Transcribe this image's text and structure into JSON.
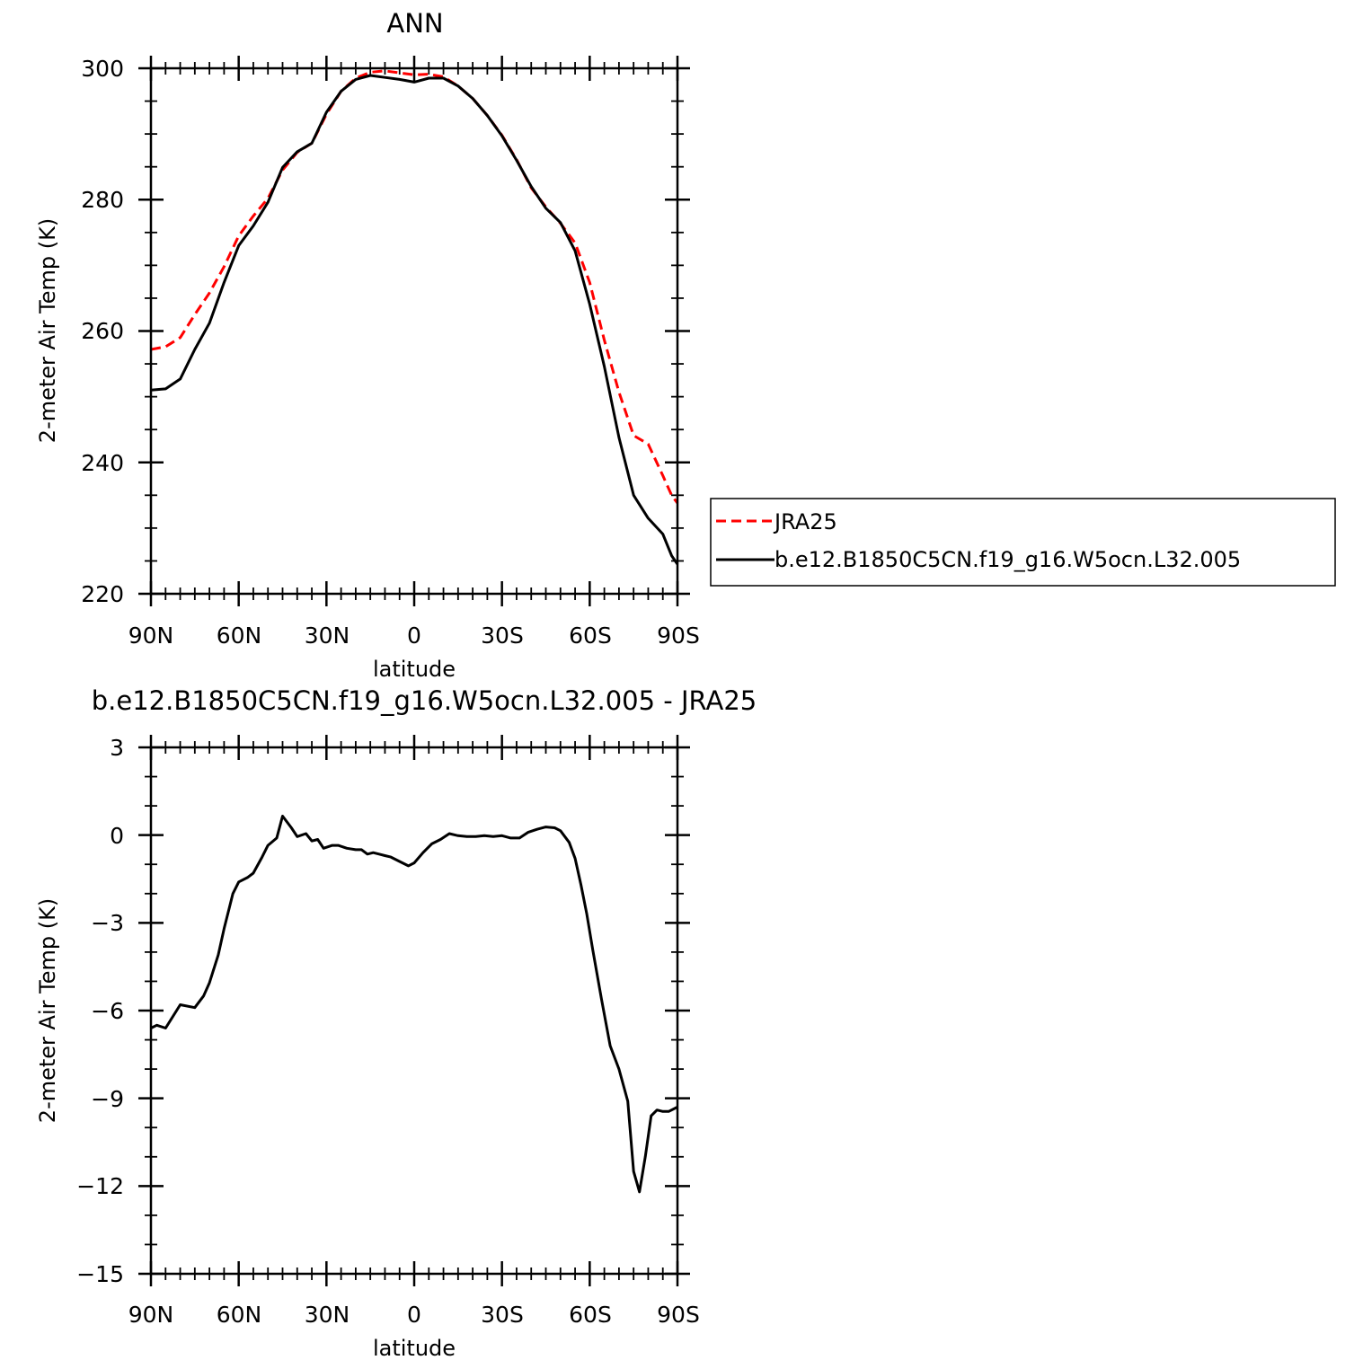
{
  "chart_data": [
    {
      "type": "line",
      "title": "ANN",
      "xlabel": "latitude",
      "ylabel": "2-meter Air Temp (K)",
      "x_unit": "degrees latitude (positive = N, negative = S)",
      "xlim": [
        90,
        -90
      ],
      "ylim": [
        220,
        300
      ],
      "xticks": [
        90,
        60,
        30,
        0,
        -30,
        -60,
        -90
      ],
      "xtick_labels": [
        "90N",
        "60N",
        "30N",
        "0",
        "30S",
        "60S",
        "90S"
      ],
      "yticks": [
        220,
        240,
        260,
        280,
        300
      ],
      "ytick_labels": [
        "220",
        "240",
        "260",
        "280",
        "300"
      ],
      "grid": false,
      "legend": {
        "placement": "right, outside plot"
      },
      "series": [
        {
          "name": "JRA25",
          "color": "#ff0000",
          "style": "dashed",
          "x": [
            90,
            85,
            80,
            75,
            70,
            65,
            60,
            55,
            50,
            45,
            40,
            35,
            30,
            25,
            20,
            15,
            10,
            5,
            0,
            -5,
            -10,
            -15,
            -20,
            -25,
            -30,
            -35,
            -40,
            -45,
            -50,
            -55,
            -60,
            -65,
            -70,
            -75,
            -80,
            -85,
            -88,
            -90
          ],
          "y": [
            257.2,
            257.6,
            259,
            262.5,
            265.8,
            269.8,
            274.5,
            277.5,
            280.2,
            284.5,
            287.2,
            288.6,
            293,
            296.5,
            298.5,
            299.4,
            299.6,
            299.3,
            299,
            299.1,
            298.7,
            297.3,
            295.4,
            292.8,
            289.8,
            286.1,
            281.8,
            278.9,
            276.4,
            273.4,
            267.4,
            258.6,
            250.7,
            244.1,
            242.8,
            238,
            235,
            233.8
          ]
        },
        {
          "name": "b.e12.B1850C5CN.f19_g16.W5ocn.L32.005",
          "color": "#000000",
          "style": "solid",
          "x": [
            90,
            85,
            80,
            75,
            70,
            65,
            60,
            55,
            50,
            45,
            40,
            35,
            30,
            25,
            20,
            15,
            10,
            5,
            0,
            -5,
            -10,
            -15,
            -20,
            -25,
            -30,
            -35,
            -40,
            -45,
            -50,
            -55,
            -60,
            -65,
            -70,
            -75,
            -80,
            -85,
            -88,
            -90
          ],
          "y": [
            251,
            251.2,
            252.7,
            257.2,
            261.2,
            267.4,
            273,
            276,
            279.6,
            284.9,
            287.3,
            288.6,
            293.3,
            296.5,
            298.3,
            298.9,
            298.6,
            298.3,
            297.9,
            298.5,
            298.5,
            297.3,
            295.4,
            292.8,
            289.7,
            286,
            282,
            278.7,
            276.5,
            272.2,
            264.1,
            254.6,
            243.8,
            235,
            231.5,
            229.1,
            225.8,
            224.5
          ]
        }
      ]
    },
    {
      "type": "line",
      "title": "b.e12.B1850C5CN.f19_g16.W5ocn.L32.005 - JRA25",
      "xlabel": "latitude",
      "ylabel": "2-meter Air Temp (K)",
      "x_unit": "degrees latitude (positive = N, negative = S)",
      "xlim": [
        90,
        -90
      ],
      "ylim": [
        -15,
        3
      ],
      "xticks": [
        90,
        60,
        30,
        0,
        -30,
        -60,
        -90
      ],
      "xtick_labels": [
        "90N",
        "60N",
        "30N",
        "0",
        "30S",
        "60S",
        "90S"
      ],
      "yticks": [
        -15,
        -12,
        -9,
        -6,
        -3,
        0,
        3
      ],
      "ytick_labels": [
        "−15",
        "−12",
        "−9",
        "−6",
        "−3",
        "0",
        "3"
      ],
      "grid": false,
      "series": [
        {
          "color": "#000000",
          "style": "solid",
          "x": [
            90,
            88,
            85,
            80,
            75,
            72,
            70,
            67,
            65,
            62,
            60,
            57,
            55,
            52,
            50,
            47,
            45,
            42,
            40,
            37,
            35,
            33,
            31,
            28,
            26,
            23,
            20,
            18,
            16,
            14,
            12,
            10,
            8,
            5,
            2,
            0,
            -3,
            -6,
            -9,
            -12,
            -15,
            -18,
            -21,
            -24,
            -27,
            -30,
            -33,
            -36,
            -39,
            -42,
            -45,
            -48,
            -50,
            -53,
            -55,
            -57,
            -59,
            -61,
            -64,
            -67,
            -70,
            -73,
            -75,
            -77,
            -79,
            -81,
            -83,
            -85,
            -87,
            -90
          ],
          "y": [
            -6.6,
            -6.5,
            -6.6,
            -5.8,
            -5.9,
            -5.5,
            -5.05,
            -4.1,
            -3.2,
            -2,
            -1.6,
            -1.45,
            -1.3,
            -0.75,
            -0.35,
            -0.1,
            0.65,
            0.25,
            -0.05,
            0.05,
            -0.2,
            -0.15,
            -0.45,
            -0.35,
            -0.35,
            -0.45,
            -0.5,
            -0.5,
            -0.65,
            -0.6,
            -0.65,
            -0.7,
            -0.75,
            -0.9,
            -1.05,
            -0.95,
            -0.6,
            -0.3,
            -0.15,
            0.05,
            -0.02,
            -0.05,
            -0.05,
            -0.02,
            -0.05,
            -0.02,
            -0.1,
            -0.1,
            0.1,
            0.2,
            0.28,
            0.25,
            0.15,
            -0.25,
            -0.8,
            -1.7,
            -2.7,
            -3.9,
            -5.6,
            -7.2,
            -8.0,
            -9.1,
            -11.5,
            -12.2,
            -11,
            -9.6,
            -9.4,
            -9.45,
            -9.45,
            -9.3
          ]
        }
      ]
    }
  ]
}
